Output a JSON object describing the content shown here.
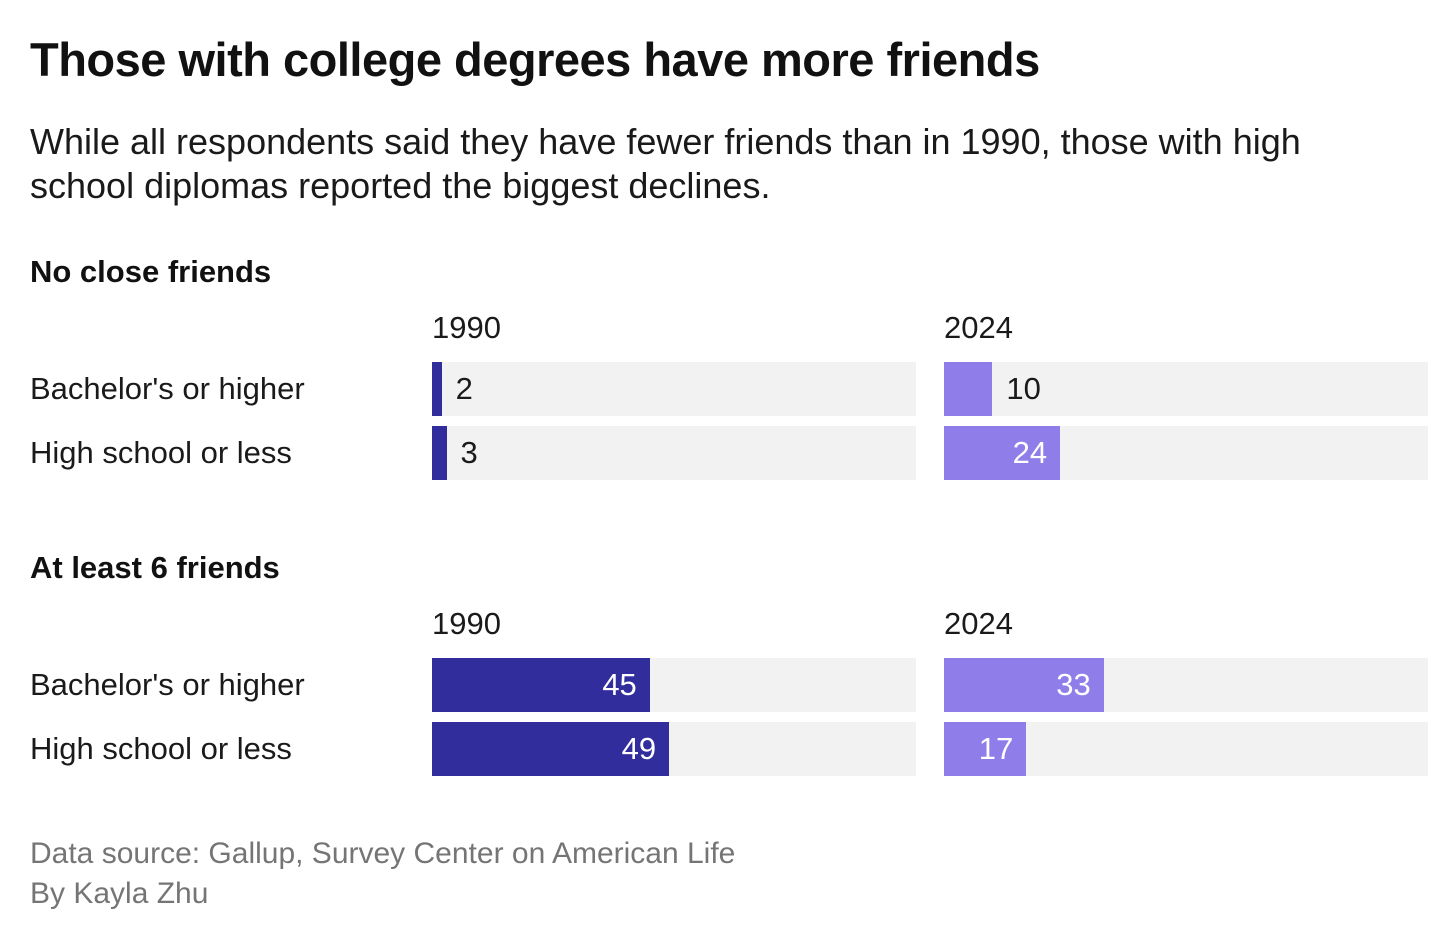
{
  "header": {
    "title": "Those with college degrees have more friends",
    "subtitle": "While all respondents said they have fewer friends than in 1990, those with high school diplomas reported the biggest declines."
  },
  "colors": {
    "1990": "#312d9c",
    "2024": "#8f7ee9",
    "track": "#f2f2f3",
    "inside_label": "#ffffff",
    "outside_label": "#1a1a1a",
    "footer_text": "#757575"
  },
  "chart_data": [
    {
      "type": "bar",
      "title": "No close friends",
      "categories": [
        "Bachelor's or higher",
        "High school or less"
      ],
      "series": [
        {
          "name": "1990",
          "values": [
            2,
            3
          ]
        },
        {
          "name": "2024",
          "values": [
            10,
            24
          ]
        }
      ],
      "xlim": [
        0,
        100
      ],
      "orientation": "horizontal",
      "grid": false,
      "legend_position": "column-headers"
    },
    {
      "type": "bar",
      "title": "At least 6 friends",
      "categories": [
        "Bachelor's or higher",
        "High school or less"
      ],
      "series": [
        {
          "name": "1990",
          "values": [
            45,
            49
          ]
        },
        {
          "name": "2024",
          "values": [
            33,
            17
          ]
        }
      ],
      "xlim": [
        0,
        100
      ],
      "orientation": "horizontal",
      "grid": false,
      "legend_position": "column-headers"
    }
  ],
  "footer": {
    "source": "Data source: Gallup, Survey Center on American Life",
    "byline": "By Kayla Zhu"
  }
}
